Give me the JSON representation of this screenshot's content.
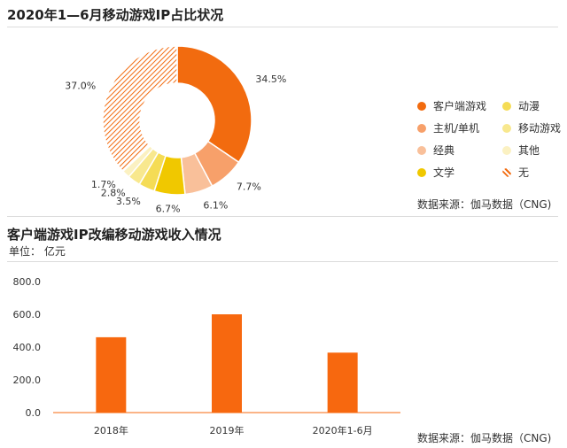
{
  "section1": {
    "title": "2020年1—6月移动游戏IP占比状况",
    "source": "数据来源：伽马数据（CNG)"
  },
  "section2": {
    "title": "客户端游戏IP改编移动游戏收入情况",
    "unit": "单位：  亿元",
    "source": "数据来源：伽马数据（CNG)"
  },
  "chart_data": [
    {
      "type": "pie",
      "title": "2020年1—6月移动游戏IP占比状况",
      "categories": [
        "客户端游戏",
        "主机/单机",
        "经典",
        "文学",
        "动漫",
        "移动游戏",
        "其他",
        "无"
      ],
      "values": [
        34.5,
        7.7,
        6.1,
        6.7,
        3.5,
        2.8,
        1.7,
        37.0
      ],
      "value_labels": [
        "34.5%",
        "7.7%",
        "6.1%",
        "6.7%",
        "3.5%",
        "2.8%",
        "1.7%",
        "37.0%"
      ],
      "colors": [
        "#f26b0f",
        "#f7a06a",
        "#f9c09a",
        "#f0c800",
        "#f5dc55",
        "#f8e88e",
        "#fbf1c2",
        "#f26b0f"
      ],
      "hatched": [
        false,
        false,
        false,
        false,
        false,
        false,
        false,
        true
      ],
      "legend_placement": "right",
      "legend_columns": [
        [
          "客户端游戏",
          "主机/单机",
          "经典",
          "文学"
        ],
        [
          "动漫",
          "移动游戏",
          "其他",
          "无"
        ]
      ]
    },
    {
      "type": "bar",
      "title": "客户端游戏IP改编移动游戏收入情况",
      "categories": [
        "2018年",
        "2019年",
        "2020年1-6月"
      ],
      "values": [
        460,
        600,
        366
      ],
      "ylim": [
        0,
        800
      ],
      "yticks": [
        "0.0",
        "200.0",
        "400.0",
        "600.0",
        "800.0"
      ],
      "ytick_values": [
        0,
        200,
        400,
        600,
        800
      ],
      "color": "#f7680f",
      "grid": false
    }
  ]
}
